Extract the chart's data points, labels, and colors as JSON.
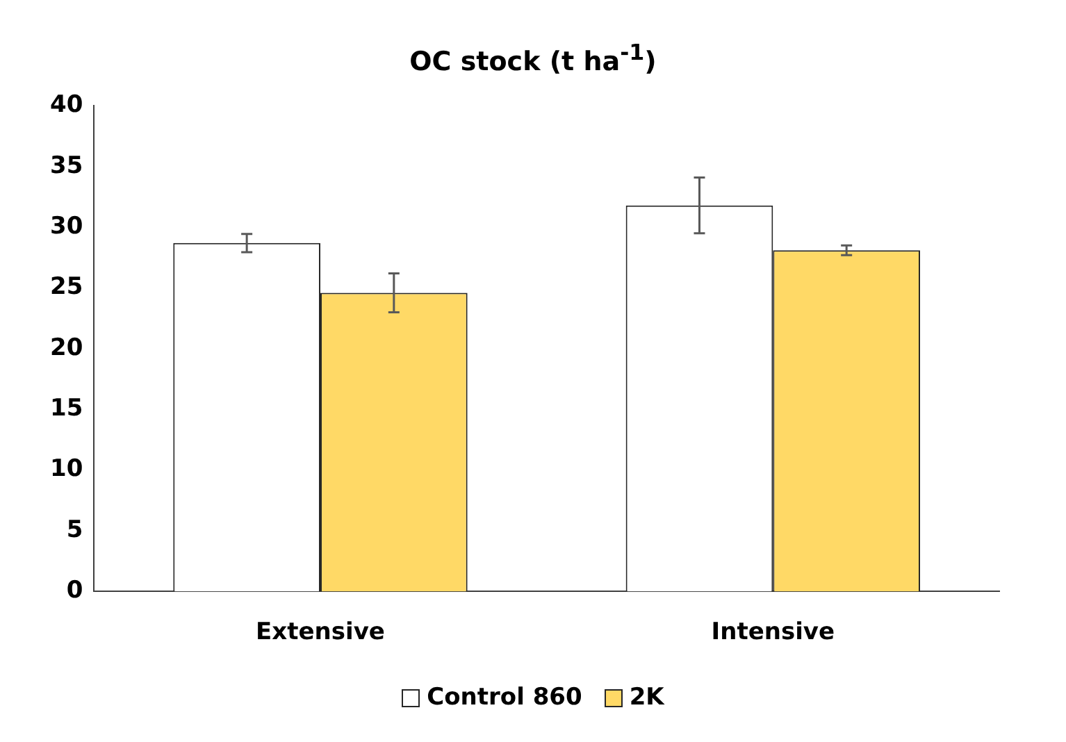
{
  "chart_data": {
    "type": "bar",
    "title": "OC stock (t ha$^{-1}$)",
    "categories": [
      "Extensive",
      "Intensive"
    ],
    "series": [
      {
        "name": "Control 860",
        "color": "#ffffff",
        "values": [
          28.7,
          31.8
        ],
        "errors": [
          0.75,
          2.3
        ]
      },
      {
        "name": "2K",
        "color": "#ffd966",
        "values": [
          24.6,
          28.1
        ],
        "errors": [
          1.6,
          0.4
        ]
      }
    ],
    "ylim": [
      0,
      40
    ],
    "yticks": [
      0,
      5,
      10,
      15,
      20,
      25,
      30,
      35,
      40
    ],
    "grid": false,
    "legend": "bottom"
  }
}
